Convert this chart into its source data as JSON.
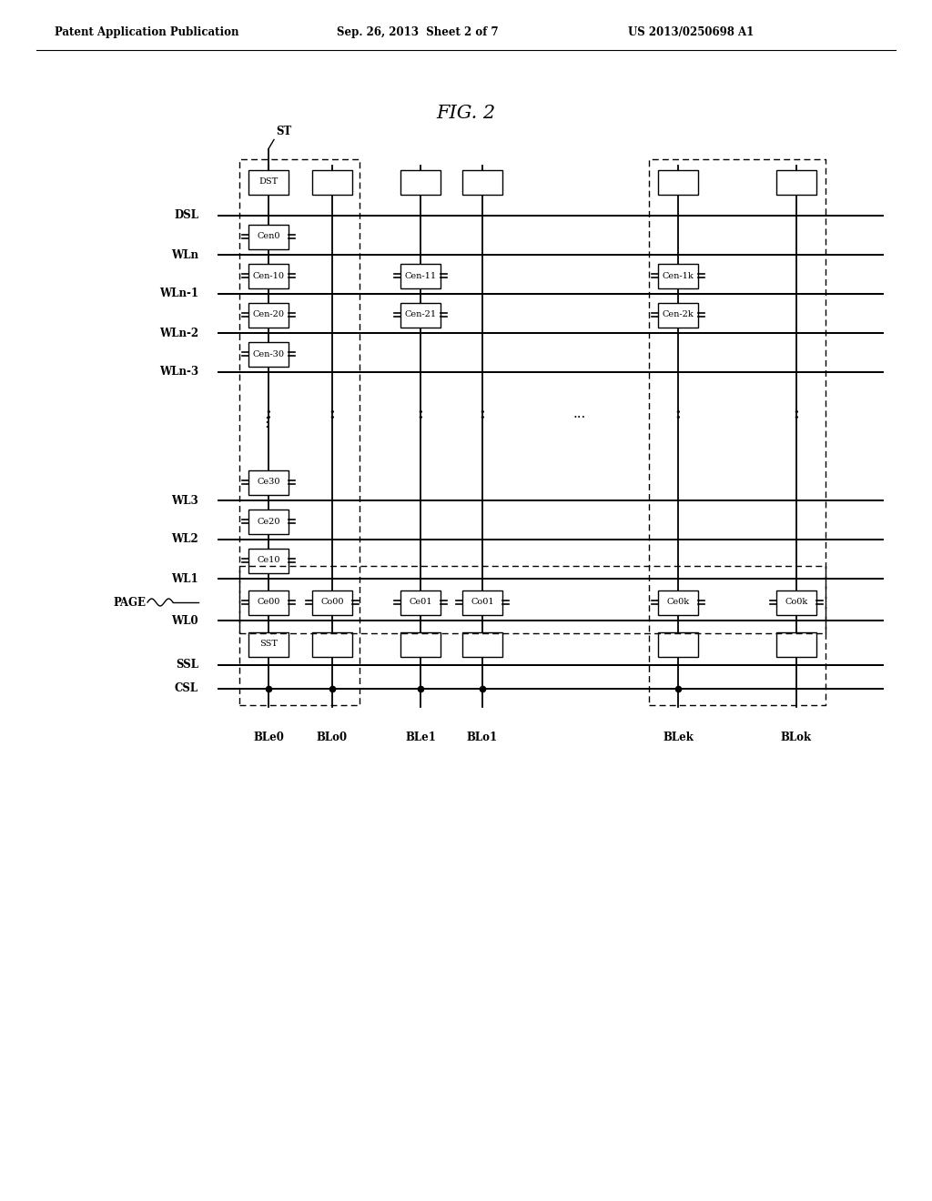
{
  "title": "FIG. 2",
  "header_left": "Patent Application Publication",
  "header_center": "Sep. 26, 2013  Sheet 2 of 7",
  "header_right": "US 2013/0250698 A1",
  "bg_color": "#ffffff",
  "lc": "#000000",
  "wl_labels_left": [
    "DSL",
    "WLn",
    "WLn-1",
    "WLn-2",
    "WLn-3",
    "WL3",
    "WL2",
    "WL1",
    "WL0",
    "SSL",
    "CSL"
  ],
  "page_label": "PAGE",
  "bl_labels": [
    "BLe0",
    "BLo0",
    "BLe1",
    "BLo1",
    "BLek",
    "BLok"
  ],
  "col0_cells": [
    [
      "Cen0",
      0
    ],
    [
      "Cen-10",
      1
    ],
    [
      "Cen-20",
      2
    ],
    [
      "Cen-30",
      3
    ],
    [
      "Ce30",
      5
    ],
    [
      "Ce20",
      6
    ],
    [
      "Ce10",
      7
    ],
    [
      "Ce00",
      8
    ]
  ],
  "col1_cells": [
    [
      "Co00",
      8
    ]
  ],
  "col2_cells": [
    [
      "Cen-11",
      1
    ],
    [
      "Cen-21",
      2
    ],
    [
      "Ce01",
      8
    ]
  ],
  "col3_cells": [
    [
      "Co01",
      8
    ]
  ],
  "col4_cells": [
    [
      "Cen-1k",
      1
    ],
    [
      "Cen-2k",
      2
    ],
    [
      "Ce0k",
      8
    ]
  ],
  "col5_cells": [
    [
      "Co0k",
      8
    ]
  ],
  "st_label": "ST",
  "dst_label": "DST",
  "sst_label": "SST"
}
